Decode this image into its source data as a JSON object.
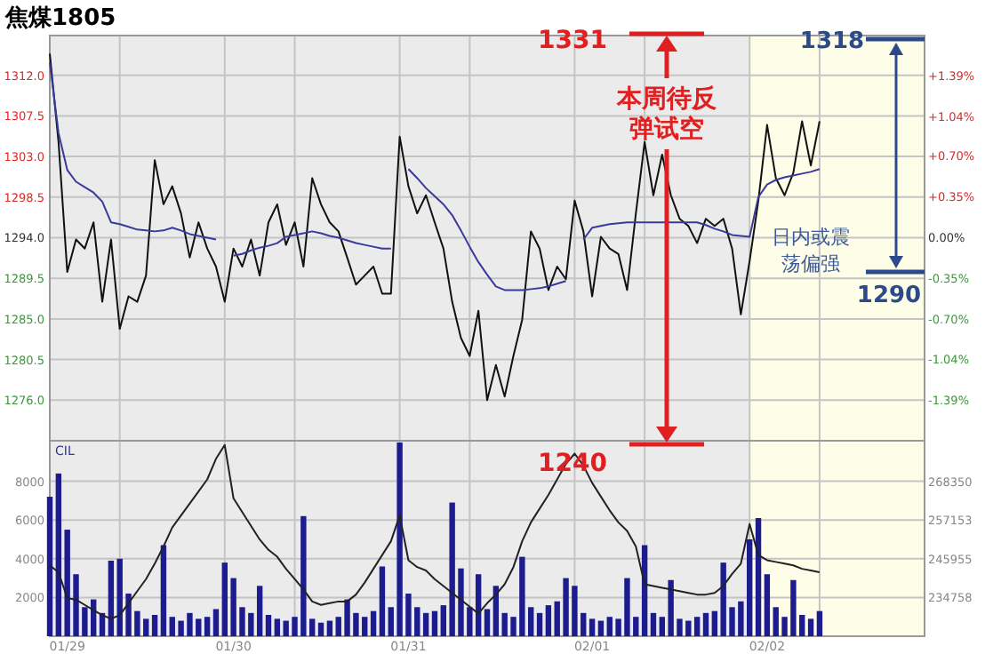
{
  "chart_data": [
    {
      "type": "line",
      "title": "焦煤1805",
      "tick_labels": "y",
      "grid": true,
      "categories": [
        null,
        null,
        null,
        null,
        null,
        null,
        null,
        null,
        null,
        null,
        null,
        null,
        null,
        null,
        null,
        null,
        null,
        null,
        null,
        null,
        null,
        null,
        null,
        null,
        null,
        null,
        null,
        null,
        null,
        null,
        null,
        null,
        null,
        null,
        null,
        null,
        null,
        null,
        null,
        null,
        null,
        null,
        null,
        null,
        null,
        null,
        null,
        null,
        null,
        null,
        null,
        null,
        null,
        null,
        null,
        null,
        null,
        null,
        null,
        null,
        null,
        null,
        null,
        null,
        null,
        null,
        null,
        null,
        null,
        null,
        null,
        null,
        null,
        null,
        null,
        null,
        null,
        null,
        null,
        null,
        null,
        null,
        null,
        null,
        null,
        null,
        null,
        null,
        null,
        null,
        null,
        null,
        null,
        null,
        null,
        null,
        null,
        null,
        null,
        null
      ],
      "ylim": [
        1271.5,
        1316.4
      ],
      "yticks": [
        {
          "value": 1312,
          "label": "1312.0"
        },
        {
          "value": 1307.5,
          "label": "1307.5"
        },
        {
          "value": 1303,
          "label": "1303.0"
        },
        {
          "value": 1298.5,
          "label": "1298.5"
        },
        {
          "value": 1294,
          "label": "1294.0"
        },
        {
          "value": 1289.5,
          "label": "1289.5"
        },
        {
          "value": 1285,
          "label": "1285.0"
        },
        {
          "value": 1280.5,
          "label": "1280.5"
        },
        {
          "value": 1276,
          "label": "1276.0"
        }
      ],
      "y2lim": [
        -1.74,
        1.73
      ],
      "y2ticks": [
        {
          "value": 1.39,
          "label": "+1.39%"
        },
        {
          "value": 1.04,
          "label": "+1.04%"
        },
        {
          "value": 0.7,
          "label": "+0.70%"
        },
        {
          "value": 0.35,
          "label": "+0.35%"
        },
        {
          "value": 0,
          "label": "0.00%"
        },
        {
          "value": -0.35,
          "label": "-0.35%"
        },
        {
          "value": -0.7,
          "label": "-0.70%"
        },
        {
          "value": -1.04,
          "label": "-1.04%"
        },
        {
          "value": -1.39,
          "label": "-1.39%"
        }
      ],
      "annotations": [
        "1331",
        "本周待反弹试空",
        "1240",
        "1318",
        "1290",
        "日内或震荡偏强"
      ],
      "series": [
        {
          "color": "#111111",
          "values": [
            1314.4,
            1304.6,
            1290.2,
            1293.8,
            1292.8,
            1295.7,
            1286.9,
            1293.8,
            1283.9,
            1287.5,
            1286.9,
            1289.8,
            1302.6,
            1297.7,
            1299.7,
            1296.7,
            1291.8,
            1295.7,
            1292.8,
            1290.8,
            1286.9,
            1292.8,
            1290.8,
            1293.8,
            1289.8,
            1295.7,
            1297.7,
            1293.2,
            1295.7,
            1290.8,
            1300.6,
            1297.7,
            1295.7,
            1294.7,
            1291.8,
            1288.8,
            1289.8,
            1290.8,
            1287.8,
            1287.8,
            1305.2,
            1299.7,
            1296.7,
            1298.7,
            1295.7,
            1292.8,
            1286.9,
            1282.9,
            1280.9,
            1285.9,
            1276.0,
            1279.9,
            1276.4,
            1280.9,
            1284.9,
            1294.7,
            1292.8,
            1288.2,
            1290.8,
            1289.4,
            1298.1,
            1294.7,
            1287.5,
            1294.1,
            1292.8,
            1292.2,
            1288.2,
            1296.7,
            1304.6,
            1298.7,
            1303.2,
            1298.7,
            1296.1,
            1295.3,
            1293.4,
            1296.1,
            1295.3,
            1296.1,
            1292.8,
            1285.5,
            1291.4,
            1298.1,
            1306.5,
            1300.6,
            1298.7,
            1301.2,
            1306.9,
            1302.0,
            1306.9,
            null,
            null,
            null,
            null,
            null,
            null,
            null,
            null,
            null,
            null,
            null
          ]
        },
        {
          "color": "#3a3a9a",
          "values": [
            1313.4,
            1305.6,
            1301.5,
            1300.2,
            1299.6,
            1299.0,
            1298.0,
            1295.7,
            1295.5,
            1295.2,
            1294.9,
            1294.8,
            1294.7,
            1294.8,
            1295.1,
            1294.8,
            1294.4,
            1294.2,
            1294.0,
            1293.8,
            null,
            1292.0,
            1292.2,
            1292.6,
            1292.9,
            1293.1,
            1293.4,
            1294.1,
            1294.3,
            1294.5,
            1294.7,
            1294.5,
            1294.2,
            1294.0,
            1293.7,
            1293.4,
            1293.2,
            1293.0,
            1292.8,
            1292.8,
            null,
            1301.6,
            1300.6,
            1299.5,
            1298.6,
            1297.7,
            1296.5,
            1294.8,
            1293.0,
            1291.3,
            1289.9,
            1288.6,
            1288.2,
            1288.2,
            1288.2,
            1288.3,
            1288.4,
            1288.6,
            1288.9,
            1289.2,
            null,
            1293.8,
            1295.1,
            1295.3,
            1295.5,
            1295.6,
            1295.7,
            1295.7,
            1295.7,
            1295.7,
            1295.7,
            1295.7,
            1295.7,
            1295.7,
            1295.7,
            1295.4,
            1295.0,
            1294.7,
            1294.3,
            1294.2,
            1294.1,
            1298.5,
            1299.9,
            1300.4,
            1300.7,
            1300.9,
            1301.1,
            1301.3,
            1301.6,
            null,
            null,
            null,
            null,
            null,
            null,
            null,
            null,
            null,
            null,
            null
          ]
        }
      ]
    },
    {
      "type": "bar",
      "grid": true,
      "categories": [
        null,
        null,
        "01/29",
        null,
        null,
        null,
        null,
        null,
        null,
        null,
        null,
        null,
        null,
        null,
        null,
        null,
        null,
        null,
        null,
        null,
        null,
        "01/30",
        null,
        null,
        null,
        null,
        null,
        null,
        null,
        null,
        null,
        null,
        null,
        null,
        null,
        null,
        null,
        null,
        null,
        null,
        null,
        "01/31",
        null,
        null,
        null,
        null,
        null,
        null,
        null,
        null,
        null,
        null,
        null,
        null,
        null,
        null,
        null,
        null,
        null,
        null,
        null,
        null,
        "02/01",
        null,
        null,
        null,
        null,
        null,
        null,
        null,
        null,
        null,
        null,
        null,
        null,
        null,
        null,
        null,
        null,
        null,
        null,
        null,
        "02/02",
        null,
        null,
        null,
        null,
        null,
        null,
        null,
        null,
        null,
        null,
        null,
        null,
        null,
        null,
        null,
        null,
        null
      ],
      "ylim": [
        0,
        10090
      ],
      "yticks": [
        2000,
        4000,
        6000,
        8000
      ],
      "y2lim": [
        223390,
        280240
      ],
      "y2ticks": [
        234758,
        245955,
        257153,
        268350
      ],
      "annotations": [
        "CIL"
      ],
      "series": [
        {
          "color": "#1c1c8f",
          "values": [
            7200,
            8400,
            5500,
            3200,
            1500,
            1900,
            1200,
            3900,
            4000,
            2200,
            1300,
            900,
            1100,
            4700,
            1000,
            800,
            1200,
            900,
            1000,
            1400,
            3800,
            3000,
            1500,
            1200,
            2600,
            1100,
            900,
            800,
            1000,
            6200,
            900,
            700,
            800,
            1000,
            1900,
            1200,
            1000,
            1300,
            3600,
            1500,
            10000,
            2200,
            1500,
            1200,
            1300,
            1600,
            6900,
            3500,
            1500,
            3200,
            1400,
            2600,
            1200,
            1000,
            4100,
            1500,
            1200,
            1600,
            1800,
            3000,
            2600,
            1200,
            900,
            800,
            1000,
            900,
            3000,
            1000,
            4700,
            1200,
            1000,
            2900,
            900,
            800,
            1000,
            1200,
            1300,
            3800,
            1500,
            1800,
            5000,
            6100,
            3200,
            1500,
            1000,
            2900,
            1100,
            900,
            1300,
            null,
            null,
            null,
            null,
            null,
            null,
            null,
            null,
            null,
            null,
            null
          ]
        },
        {
          "type": "line",
          "axis": "y2",
          "color": "#222222",
          "values": [
            244000,
            242000,
            234500,
            234000,
            232500,
            231000,
            229500,
            228500,
            229500,
            233000,
            236500,
            240000,
            244500,
            249500,
            255000,
            258500,
            262000,
            265500,
            269000,
            275000,
            279000,
            263500,
            259500,
            255500,
            251500,
            248500,
            246500,
            243000,
            240000,
            237000,
            233500,
            232500,
            233000,
            233500,
            233500,
            235500,
            239000,
            243000,
            247000,
            251000,
            258500,
            245500,
            243500,
            242500,
            240000,
            238000,
            236000,
            234000,
            232000,
            230000,
            233000,
            235500,
            238500,
            243500,
            251000,
            256500,
            260500,
            264500,
            269000,
            273500,
            276500,
            273000,
            268000,
            264000,
            260000,
            256500,
            254000,
            249500,
            238500,
            238000,
            237500,
            237000,
            236500,
            236000,
            235500,
            235500,
            236000,
            238000,
            241500,
            244500,
            256000,
            247000,
            245500,
            245000,
            244500,
            244000,
            243000,
            242500,
            242000,
            null,
            null,
            null,
            null,
            null,
            null,
            null,
            null,
            null,
            null,
            null
          ]
        }
      ]
    }
  ]
}
